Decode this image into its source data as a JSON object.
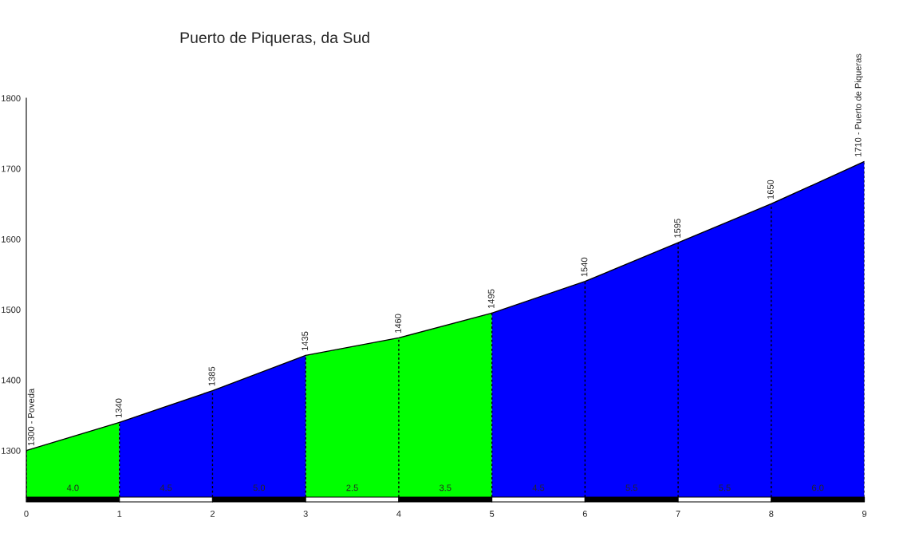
{
  "chart_data": {
    "type": "area",
    "title": "Puerto de Piqueras, da Sud",
    "x": [
      0,
      1,
      2,
      3,
      4,
      5,
      6,
      7,
      8,
      9
    ],
    "series": [
      {
        "color": "#00ff00",
        "values": [
          1300,
          1340,
          null,
          1435,
          1460,
          1495,
          null,
          null,
          null,
          null
        ]
      },
      {
        "color": "#0000ff",
        "values": [
          null,
          1340,
          1385,
          1435,
          null,
          1495,
          1540,
          1595,
          1650,
          1710
        ]
      }
    ],
    "value_labels": [
      "1300 - Poveda",
      "1340",
      "1385",
      "1435",
      "1460",
      "1495",
      "1540",
      "1595",
      "1650",
      "1710 - Puerto de Piqueras"
    ],
    "xlim": [
      0,
      9
    ],
    "xticks": [
      0,
      1,
      2,
      3,
      4,
      5,
      6,
      7,
      8,
      9
    ],
    "ylim": [
      1234,
      1800
    ],
    "yticks": [
      1300,
      1400,
      1500,
      1600,
      1700,
      1800
    ],
    "grid": "x",
    "annotations": [
      "4.0",
      "4.5",
      "5.0",
      "2.5",
      "3.5",
      "4.5",
      "5.5",
      "5.5",
      "6.0"
    ]
  }
}
